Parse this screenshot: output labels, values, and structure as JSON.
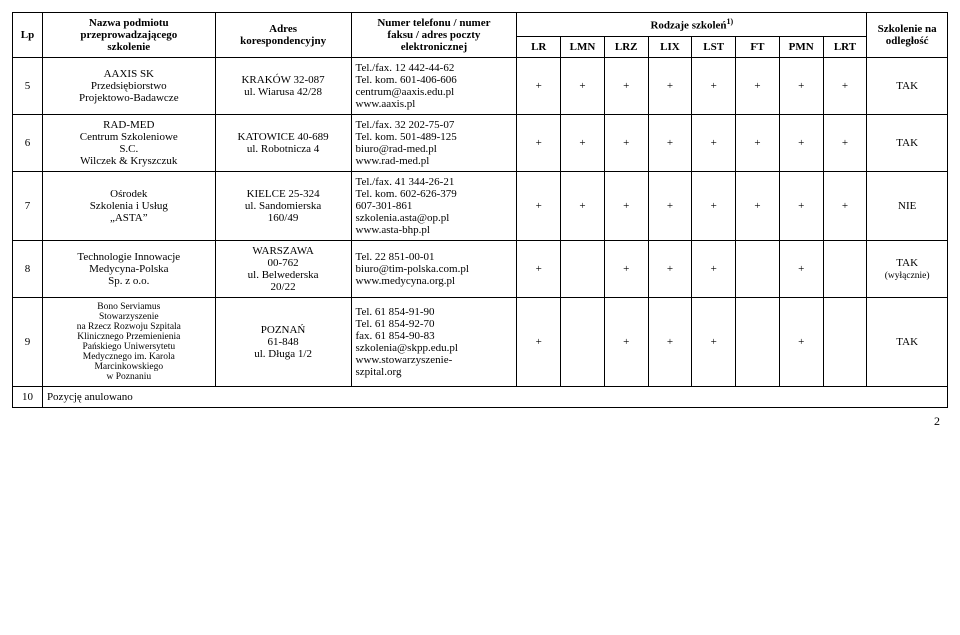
{
  "header": {
    "lp": "Lp",
    "name": "Nazwa podmiotu\nprzeprowadzającego\nszkolenie",
    "addr": "Adres\nkorespondencyjny",
    "tel": "Numer telefonu / numer\nfaksu / adres poczty\nelektronicznej",
    "types_title": "Rodzaje szkoleń",
    "types_sup": "1)",
    "distance": "Szkolenie na\nodległość",
    "cols": [
      "LR",
      "LMN",
      "LRZ",
      "LIX",
      "LST",
      "FT",
      "PMN",
      "LRT"
    ]
  },
  "rows": [
    {
      "lp": "5",
      "name": "AAXIS SK\nPrzedsiębiorstwo\nProjektowo-Badawcze",
      "addr": "KRAKÓW 32-087\nul. Wiarusa 42/28",
      "tel": "Tel./fax. 12 442-44-62\nTel. kom. 601-406-606\ncentrum@aaxis.edu.pl\nwww.aaxis.pl",
      "marks": [
        "+",
        "+",
        "+",
        "+",
        "+",
        "+",
        "+",
        "+"
      ],
      "distance": "TAK"
    },
    {
      "lp": "6",
      "name": "RAD-MED\nCentrum Szkoleniowe\nS.C.\nWilczek & Kryszczuk",
      "addr": "KATOWICE 40-689\nul. Robotnicza 4",
      "tel": "Tel./fax. 32 202-75-07\nTel. kom. 501-489-125\nbiuro@rad-med.pl\nwww.rad-med.pl",
      "marks": [
        "+",
        "+",
        "+",
        "+",
        "+",
        "+",
        "+",
        "+"
      ],
      "distance": "TAK"
    },
    {
      "lp": "7",
      "name": "Ośrodek\nSzkolenia i Usług\n„ASTA”",
      "addr": "KIELCE 25-324\nul. Sandomierska\n160/49",
      "tel": "Tel./fax. 41 344-26-21\nTel. kom. 602-626-379\n               607-301-861\nszkolenia.asta@op.pl\nwww.asta-bhp.pl",
      "marks": [
        "+",
        "+",
        "+",
        "+",
        "+",
        "+",
        "+",
        "+"
      ],
      "distance": "NIE"
    },
    {
      "lp": "8",
      "name": "Technologie Innowacje\nMedycyna-Polska\nSp. z o.o.",
      "addr": "WARSZAWA\n00-762\nul. Belwederska\n20/22",
      "tel": "Tel. 22 851-00-01\nbiuro@tim-polska.com.pl\nwww.medycyna.org.pl",
      "marks": [
        "+",
        "",
        "+",
        "+",
        "+",
        "",
        "+",
        ""
      ],
      "distance": "TAK\n(wyłącznie)",
      "distance_small": true
    },
    {
      "lp": "9",
      "name": "Bono Serviamus\nStowarzyszenie\nna Rzecz Rozwoju Szpitala\nKlinicznego Przemienienia\nPańskiego Uniwersytetu\nMedycznego im. Karola\nMarcinkowskiego\nw Poznaniu",
      "name_small": true,
      "addr": "POZNAŃ\n61-848\nul. Długa 1/2",
      "tel": "Tel. 61 854-91-90\nTel. 61 854-92-70\nfax. 61 854-90-83\nszkolenia@skpp.edu.pl\nwww.stowarzyszenie-\nszpital.org",
      "marks": [
        "+",
        "",
        "+",
        "+",
        "+",
        "",
        "+",
        ""
      ],
      "distance": "TAK"
    },
    {
      "lp": "10",
      "name_left": "Pozycję anulowano",
      "full": true
    }
  ],
  "pagenum": "2"
}
